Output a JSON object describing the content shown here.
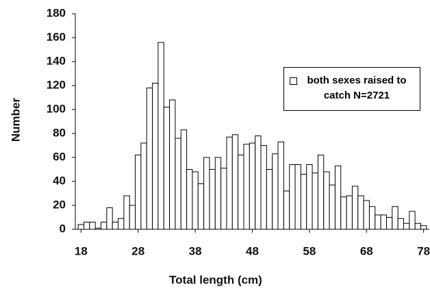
{
  "chart_data": {
    "type": "histogram",
    "x_label": "Total length (cm)",
    "y_label": "Number",
    "bins": [
      17.5,
      18.5,
      19.5,
      20.5,
      21.5,
      22.5,
      23.5,
      24.5,
      25.5,
      26.5,
      27.5,
      28.5,
      29.5,
      30.5,
      31.5,
      32.5,
      33.5,
      34.5,
      35.5,
      36.5,
      37.5,
      38.5,
      39.5,
      40.5,
      41.5,
      42.5,
      43.5,
      44.5,
      45.5,
      46.5,
      47.5,
      48.5,
      49.5,
      50.5,
      51.5,
      52.5,
      53.5,
      54.5,
      55.5,
      56.5,
      57.5,
      58.5,
      59.5,
      60.5,
      61.5,
      62.5,
      63.5,
      64.5,
      65.5,
      66.5,
      67.5,
      68.5,
      69.5,
      70.5,
      71.5,
      72.5,
      73.5,
      74.5,
      75.5,
      76.5,
      77.5,
      78.5
    ],
    "series": [
      {
        "name": "both sexes raised to catch N=2721",
        "color": "#ffffff",
        "values": [
          4,
          6,
          6,
          1,
          6,
          18,
          6,
          9,
          28,
          20,
          62,
          72,
          118,
          122,
          156,
          102,
          108,
          76,
          83,
          50,
          48,
          38,
          60,
          50,
          60,
          51,
          77,
          79,
          62,
          71,
          72,
          78,
          70,
          50,
          63,
          73,
          32,
          54,
          54,
          46,
          54,
          47,
          62,
          48,
          37,
          53,
          27,
          28,
          36,
          28,
          24,
          19,
          12,
          12,
          10,
          19,
          9,
          5,
          15,
          5,
          3
        ]
      }
    ],
    "xlim": [
      17,
      79
    ],
    "xticks": [
      18,
      28,
      38,
      48,
      58,
      68,
      78
    ],
    "ylim": [
      0,
      180
    ],
    "yticks": [
      0,
      20,
      40,
      60,
      80,
      100,
      120,
      140,
      160,
      180
    ],
    "legend": "right"
  }
}
